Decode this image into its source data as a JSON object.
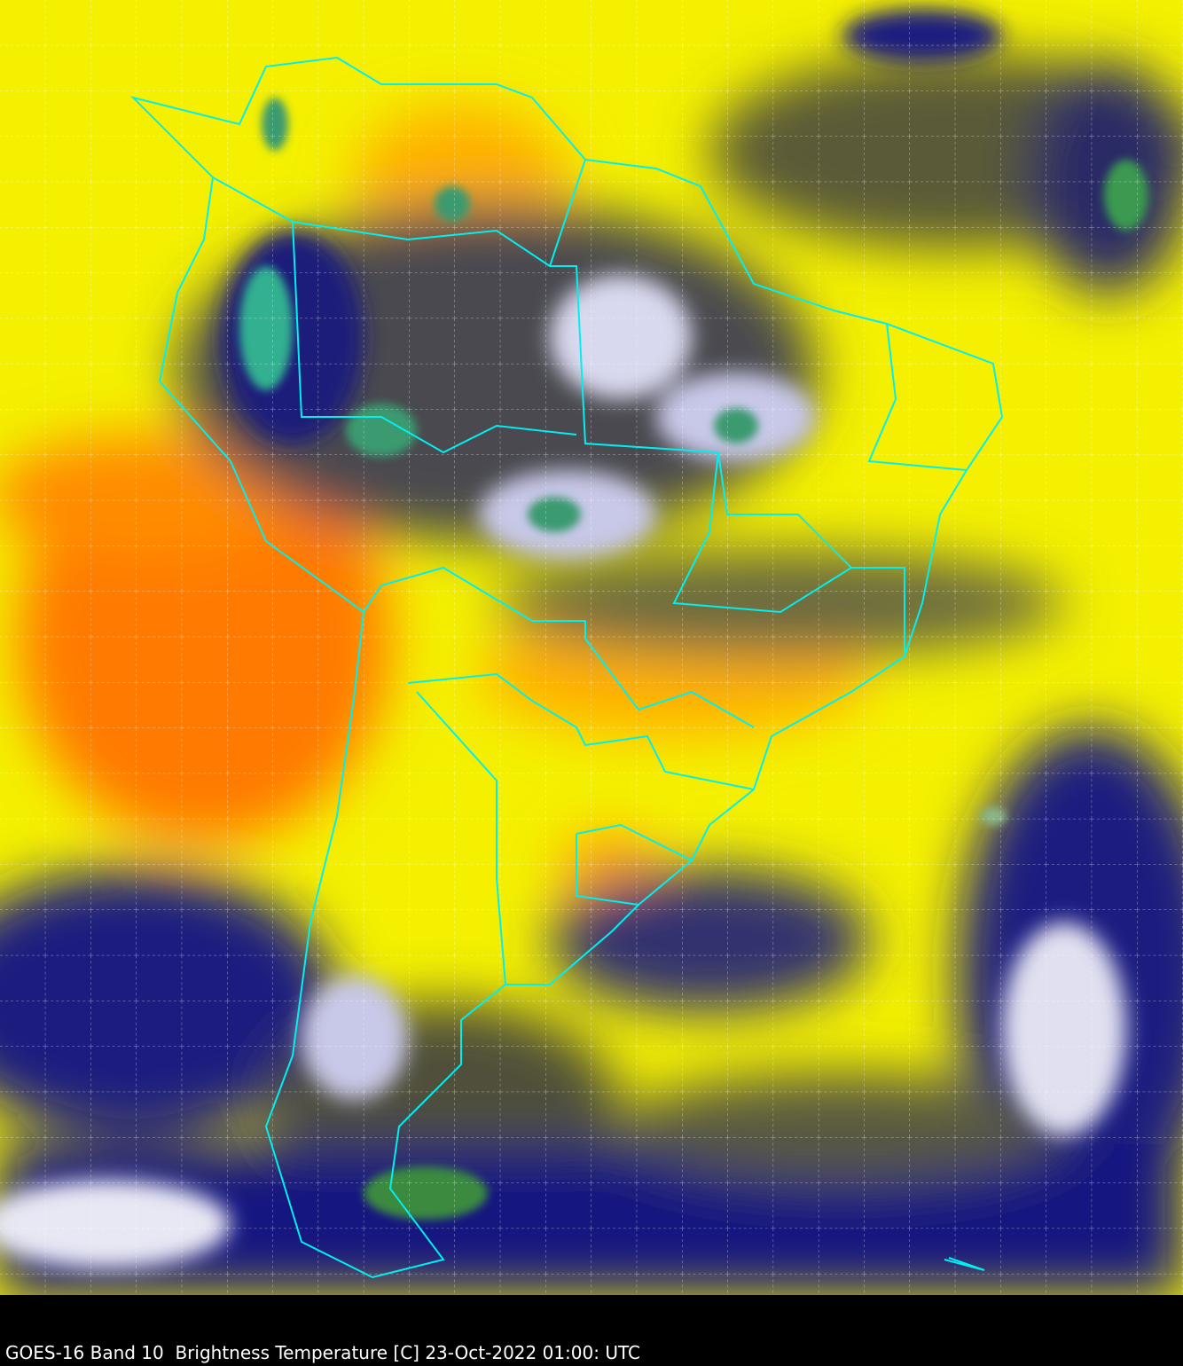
{
  "caption": "GOES-16 Band 10  Brightness Temperature [C] 23-Oct-2022 01:00: UTC",
  "map": {
    "satellite": "GOES-16",
    "band": "Band 10",
    "quantity": "Brightness Temperature [C]",
    "region": "South America",
    "colors": {
      "warm": "#ff6a00",
      "mid": "#ffff00",
      "cool": "#7a7a30",
      "cold": "#0a0a78",
      "very_cold": "#ffffff",
      "coldest": "#2e8b57",
      "borders": "#00ffff",
      "grid": "#ffffff"
    },
    "grid": true
  }
}
